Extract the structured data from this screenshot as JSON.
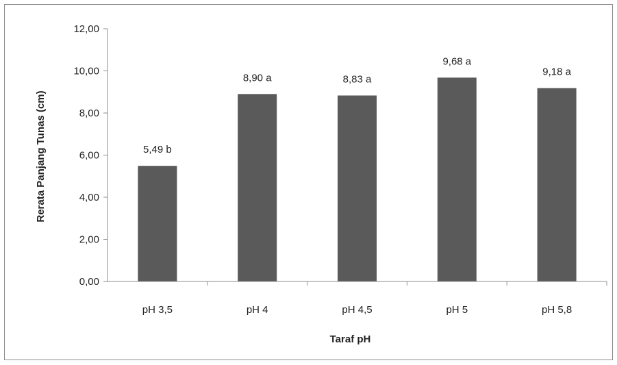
{
  "chart_data": {
    "type": "bar",
    "categories": [
      "pH 3,5",
      "pH 4",
      "pH 4,5",
      "pH 5",
      "pH 5,8"
    ],
    "values": [
      5.49,
      8.9,
      8.83,
      9.68,
      9.18
    ],
    "data_labels": [
      "5,49 b",
      "8,90 a",
      "8,83 a",
      "9,68 a",
      "9,18 a"
    ],
    "xlabel": "Taraf pH",
    "ylabel": "Rerata Panjang Tunas (cm)",
    "ylim": [
      0,
      12
    ],
    "yticks": [
      0,
      2,
      4,
      6,
      8,
      10,
      12
    ],
    "ytick_labels": [
      "0,00",
      "2,00",
      "4,00",
      "6,00",
      "8,00",
      "10,00",
      "12,00"
    ],
    "grid": false,
    "bar_color": "#5a5a5a"
  }
}
